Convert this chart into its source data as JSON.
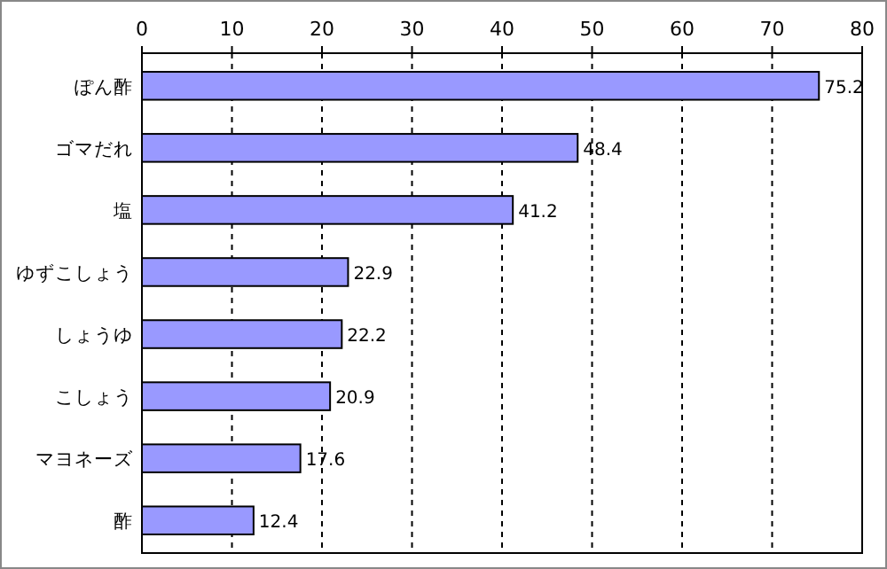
{
  "chart_data": {
    "type": "bar",
    "orientation": "horizontal",
    "categories": [
      "ぽん酢",
      "ゴマだれ",
      "塩",
      "ゆずこしょう",
      "しょうゆ",
      "こしょう",
      "マヨネーズ",
      "酢"
    ],
    "values": [
      75.2,
      48.4,
      41.2,
      22.9,
      22.2,
      20.9,
      17.6,
      12.4
    ],
    "color": "#9999ff",
    "xlim": [
      0,
      80
    ],
    "xticks": [
      0,
      10,
      20,
      30,
      40,
      50,
      60,
      70,
      80
    ],
    "grid": "x",
    "data_labels": true
  }
}
